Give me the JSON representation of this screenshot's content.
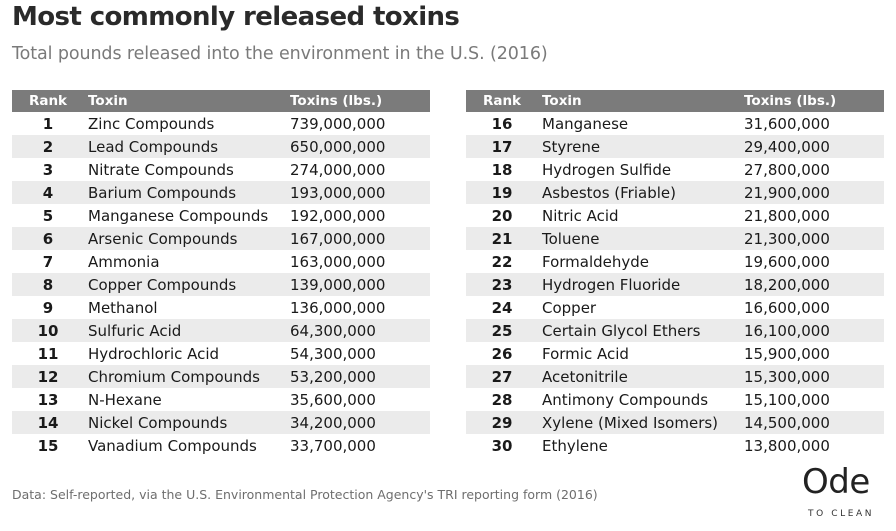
{
  "title": "Most commonly released toxins",
  "subtitle": "Total pounds released into the environment in the U.S. (2016)",
  "footnote": "Data: Self-reported, via the U.S. Environmental Protection Agency's TRI reporting form (2016)",
  "logo": {
    "word": "Ode",
    "tagline": "TO CLEAN"
  },
  "colors": {
    "header_bg": "#7b7b7b",
    "row_stripe": "#ebebeb",
    "title": "#2a2a2a",
    "subtitle": "#7a7a7a"
  },
  "chart_data": {
    "type": "table",
    "title": "Most commonly released toxins",
    "subtitle": "Total pounds released into the environment in the U.S. (2016)",
    "columns": [
      "Rank",
      "Toxin",
      "Toxins (lbs.)"
    ],
    "rows_left": [
      {
        "rank": "1",
        "toxin": "Zinc Compounds",
        "value": "739,000,000"
      },
      {
        "rank": "2",
        "toxin": "Lead Compounds",
        "value": "650,000,000"
      },
      {
        "rank": "3",
        "toxin": "Nitrate Compounds",
        "value": "274,000,000"
      },
      {
        "rank": "4",
        "toxin": "Barium Compounds",
        "value": "193,000,000"
      },
      {
        "rank": "5",
        "toxin": "Manganese Compounds",
        "value": "192,000,000"
      },
      {
        "rank": "6",
        "toxin": "Arsenic Compounds",
        "value": "167,000,000"
      },
      {
        "rank": "7",
        "toxin": "Ammonia",
        "value": "163,000,000"
      },
      {
        "rank": "8",
        "toxin": "Copper Compounds",
        "value": "139,000,000"
      },
      {
        "rank": "9",
        "toxin": "Methanol",
        "value": "136,000,000"
      },
      {
        "rank": "10",
        "toxin": "Sulfuric Acid",
        "value": "64,300,000"
      },
      {
        "rank": "11",
        "toxin": "Hydrochloric Acid",
        "value": "54,300,000"
      },
      {
        "rank": "12",
        "toxin": "Chromium Compounds",
        "value": "53,200,000"
      },
      {
        "rank": "13",
        "toxin": "N-Hexane",
        "value": "35,600,000"
      },
      {
        "rank": "14",
        "toxin": "Nickel Compounds",
        "value": "34,200,000"
      },
      {
        "rank": "15",
        "toxin": "Vanadium Compounds",
        "value": "33,700,000"
      }
    ],
    "rows_right": [
      {
        "rank": "16",
        "toxin": "Manganese",
        "value": "31,600,000"
      },
      {
        "rank": "17",
        "toxin": "Styrene",
        "value": "29,400,000"
      },
      {
        "rank": "18",
        "toxin": "Hydrogen Sulfide",
        "value": "27,800,000"
      },
      {
        "rank": "19",
        "toxin": "Asbestos (Friable)",
        "value": "21,900,000"
      },
      {
        "rank": "20",
        "toxin": "Nitric Acid",
        "value": "21,800,000"
      },
      {
        "rank": "21",
        "toxin": "Toluene",
        "value": "21,300,000"
      },
      {
        "rank": "22",
        "toxin": "Formaldehyde",
        "value": "19,600,000"
      },
      {
        "rank": "23",
        "toxin": "Hydrogen Fluoride",
        "value": "18,200,000"
      },
      {
        "rank": "24",
        "toxin": "Copper",
        "value": "16,600,000"
      },
      {
        "rank": "25",
        "toxin": "Certain Glycol Ethers",
        "value": "16,100,000"
      },
      {
        "rank": "26",
        "toxin": "Formic Acid",
        "value": "15,900,000"
      },
      {
        "rank": "27",
        "toxin": "Acetonitrile",
        "value": "15,300,000"
      },
      {
        "rank": "28",
        "toxin": "Antimony Compounds",
        "value": "15,100,000"
      },
      {
        "rank": "29",
        "toxin": "Xylene (Mixed Isomers)",
        "value": "14,500,000"
      },
      {
        "rank": "30",
        "toxin": "Ethylene",
        "value": "13,800,000"
      }
    ]
  }
}
